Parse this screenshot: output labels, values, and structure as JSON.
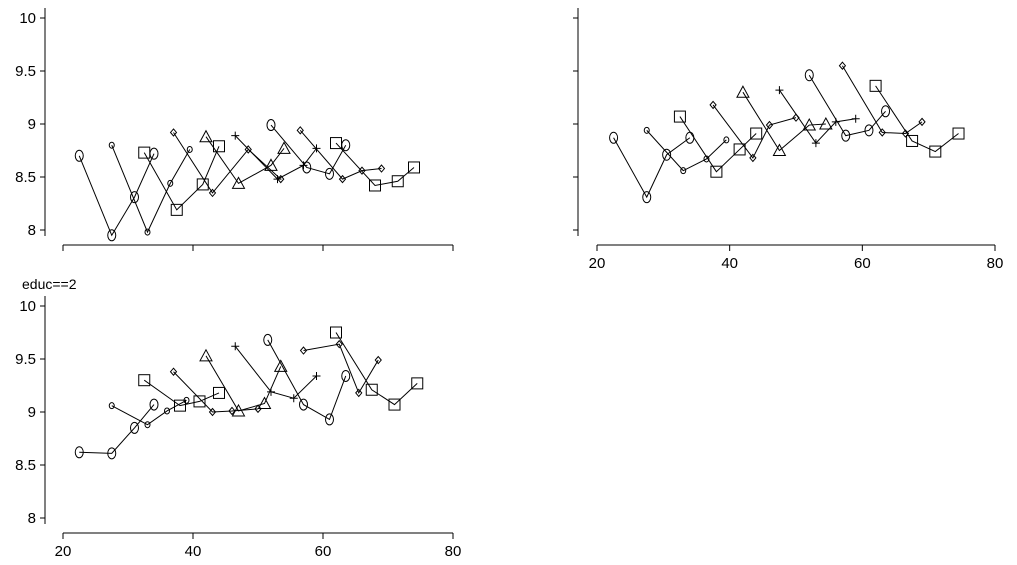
{
  "chart_data": [
    {
      "type": "line",
      "title": "",
      "xlim": [
        20,
        80
      ],
      "ylim": [
        8,
        10
      ],
      "xticks": [
        20,
        40,
        60,
        80
      ],
      "yticks": [
        8,
        8.5,
        9,
        9.5,
        10
      ],
      "show_x_tick_labels": false,
      "grid": false,
      "series": [
        {
          "marker": "circle",
          "x": [
            22.5,
            27.5,
            31,
            34
          ],
          "y": [
            8.7,
            7.95,
            8.31,
            8.72
          ]
        },
        {
          "marker": "circle-small",
          "x": [
            27.5,
            33,
            36.5,
            39.5
          ],
          "y": [
            8.8,
            7.98,
            8.44,
            8.76
          ]
        },
        {
          "marker": "square",
          "x": [
            32.5,
            37.5,
            41.5,
            44
          ],
          "y": [
            8.73,
            8.19,
            8.43,
            8.79
          ]
        },
        {
          "marker": "diamond",
          "x": [
            37,
            43,
            48.5,
            53.5
          ],
          "y": [
            8.92,
            8.35,
            8.76,
            8.48
          ]
        },
        {
          "marker": "triangle",
          "x": [
            42,
            47,
            52,
            54
          ],
          "y": [
            8.88,
            8.44,
            8.61,
            8.77
          ]
        },
        {
          "marker": "plus",
          "x": [
            46.5,
            53,
            57,
            59
          ],
          "y": [
            8.89,
            8.48,
            8.61,
            8.77
          ]
        },
        {
          "marker": "circle",
          "x": [
            52,
            57.5,
            61,
            63.5
          ],
          "y": [
            8.99,
            8.59,
            8.53,
            8.8
          ]
        },
        {
          "marker": "diamond",
          "x": [
            56.5,
            63,
            66,
            69
          ],
          "y": [
            8.94,
            8.48,
            8.56,
            8.58
          ]
        },
        {
          "marker": "square",
          "x": [
            62,
            68,
            71.5,
            74
          ],
          "y": [
            8.82,
            8.42,
            8.46,
            8.59
          ]
        }
      ]
    },
    {
      "type": "line",
      "title": "",
      "xlim": [
        20,
        80
      ],
      "ylim": [
        8,
        10
      ],
      "xticks": [
        20,
        40,
        60,
        80
      ],
      "yticks": [
        8,
        8.5,
        9,
        9.5,
        10
      ],
      "show_x_tick_labels": true,
      "show_y_tick_labels": false,
      "grid": false,
      "series": [
        {
          "marker": "circle",
          "x": [
            22.5,
            27.5,
            30.5,
            34
          ],
          "y": [
            8.87,
            8.31,
            8.71,
            8.87
          ]
        },
        {
          "marker": "circle-small",
          "x": [
            27.5,
            33,
            36.5,
            39.5
          ],
          "y": [
            8.94,
            8.56,
            8.67,
            8.85
          ]
        },
        {
          "marker": "square",
          "x": [
            32.5,
            38,
            41.5,
            44
          ],
          "y": [
            9.07,
            8.55,
            8.76,
            8.91
          ]
        },
        {
          "marker": "diamond",
          "x": [
            37.5,
            43.5,
            46,
            50
          ],
          "y": [
            9.18,
            8.68,
            8.99,
            9.06
          ]
        },
        {
          "marker": "triangle",
          "x": [
            42,
            47.5,
            52,
            54.5
          ],
          "y": [
            9.3,
            8.75,
            8.99,
            9.0
          ]
        },
        {
          "marker": "plus",
          "x": [
            47.5,
            53,
            56,
            59
          ],
          "y": [
            9.32,
            8.82,
            9.02,
            9.05
          ]
        },
        {
          "marker": "circle",
          "x": [
            52,
            57.5,
            61,
            63.5
          ],
          "y": [
            9.46,
            8.89,
            8.94,
            9.12
          ]
        },
        {
          "marker": "diamond",
          "x": [
            57,
            63,
            66.5,
            69
          ],
          "y": [
            9.55,
            8.92,
            8.91,
            9.02
          ]
        },
        {
          "marker": "square",
          "x": [
            62,
            67.5,
            71,
            74.5
          ],
          "y": [
            9.36,
            8.84,
            8.74,
            8.91
          ]
        }
      ]
    },
    {
      "type": "line",
      "title": "educ==2",
      "xlim": [
        20,
        80
      ],
      "ylim": [
        8,
        10
      ],
      "xticks": [
        20,
        40,
        60,
        80
      ],
      "yticks": [
        8,
        8.5,
        9,
        9.5,
        10
      ],
      "show_x_tick_labels": true,
      "grid": false,
      "series": [
        {
          "marker": "circle",
          "x": [
            22.5,
            27.5,
            31,
            34
          ],
          "y": [
            8.62,
            8.61,
            8.85,
            9.07
          ]
        },
        {
          "marker": "circle-small",
          "x": [
            27.5,
            33,
            36,
            39
          ],
          "y": [
            9.06,
            8.88,
            9.01,
            9.11
          ]
        },
        {
          "marker": "square",
          "x": [
            32.5,
            38,
            41,
            44
          ],
          "y": [
            9.3,
            9.06,
            9.1,
            9.18
          ]
        },
        {
          "marker": "diamond",
          "x": [
            37,
            43,
            46,
            50
          ],
          "y": [
            9.38,
            9.0,
            9.01,
            9.03
          ]
        },
        {
          "marker": "triangle",
          "x": [
            42,
            47,
            51,
            53.5
          ],
          "y": [
            9.53,
            9.01,
            9.08,
            9.43
          ]
        },
        {
          "marker": "plus",
          "x": [
            46.5,
            52,
            55.5,
            59
          ],
          "y": [
            9.62,
            9.19,
            9.13,
            9.34
          ]
        },
        {
          "marker": "circle",
          "x": [
            51.5,
            57,
            61,
            63.5
          ],
          "y": [
            9.68,
            9.07,
            8.93,
            9.34
          ]
        },
        {
          "marker": "diamond",
          "x": [
            57,
            62.5,
            65.5,
            68.5
          ],
          "y": [
            9.58,
            9.64,
            9.18,
            9.49
          ]
        },
        {
          "marker": "square",
          "x": [
            62,
            67.5,
            71,
            74.5
          ],
          "y": [
            9.75,
            9.21,
            9.07,
            9.27
          ]
        }
      ]
    }
  ]
}
